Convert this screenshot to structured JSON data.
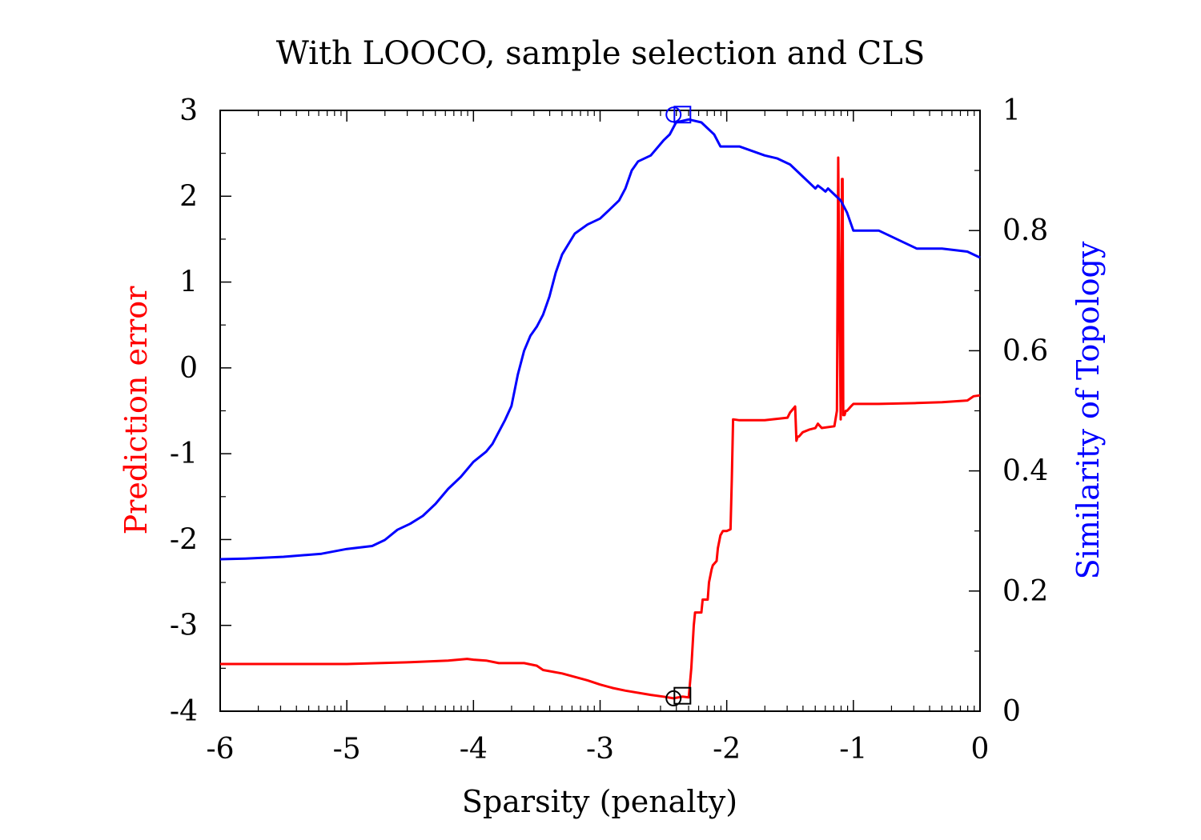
{
  "chart_data": {
    "type": "line",
    "title": "With LOOCO, sample selection and CLS",
    "xlabel": "Sparsity (penalty)",
    "ylabel_left": "Prediction error",
    "ylabel_right": "Similarity of Topology",
    "xlim": [
      -6,
      0
    ],
    "ylim_left": [
      -4,
      3
    ],
    "ylim_right": [
      0,
      1
    ],
    "x_ticks": [
      -6,
      -5,
      -4,
      -3,
      -2,
      -1,
      0
    ],
    "x_tick_labels": [
      "-6",
      "-5",
      "-4",
      "-3",
      "-2",
      "-1",
      "0"
    ],
    "y_left_ticks": [
      -4,
      -3,
      -2,
      -1,
      0,
      1,
      2,
      3
    ],
    "y_left_tick_labels": [
      "-4",
      "-3",
      "-2",
      "-1",
      "0",
      "1",
      "2",
      "3"
    ],
    "y_right_ticks": [
      0,
      0.2,
      0.4,
      0.6,
      0.8,
      1
    ],
    "y_right_tick_labels": [
      "0",
      "0.2",
      "0.4",
      "0.6",
      "0.8",
      "1"
    ],
    "grid": false,
    "legend": "none",
    "colors": {
      "prediction_error": "#ff0000",
      "similarity": "#0000ff",
      "markers": "#000000",
      "axes": "#000000"
    },
    "series": [
      {
        "axis": "left",
        "x": [
          -6.0,
          -5.5,
          -5.0,
          -4.5,
          -4.2,
          -4.05,
          -4.0,
          -3.9,
          -3.8,
          -3.6,
          -3.5,
          -3.45,
          -3.3,
          -3.1,
          -3.0,
          -2.9,
          -2.8,
          -2.6,
          -2.5,
          -2.42,
          -2.35,
          -2.3,
          -2.28,
          -2.26,
          -2.25,
          -2.2,
          -2.19,
          -2.15,
          -2.14,
          -2.12,
          -2.11,
          -2.08,
          -2.07,
          -2.05,
          -2.03,
          -2.0,
          -1.97,
          -1.96,
          -1.95,
          -1.9,
          -1.7,
          -1.52,
          -1.5,
          -1.46,
          -1.45,
          -1.44,
          -1.43,
          -1.4,
          -1.35,
          -1.3,
          -1.28,
          -1.25,
          -1.15,
          -1.13,
          -1.12,
          -1.11,
          -1.1,
          -1.09,
          -1.085,
          -1.08,
          -1.07,
          -1.06,
          -1.05,
          -1.02,
          -1.0,
          -0.95,
          -0.8,
          -0.5,
          -0.3,
          -0.1,
          -0.05,
          0.0
        ],
        "values": [
          -3.45,
          -3.45,
          -3.45,
          -3.43,
          -3.41,
          -3.39,
          -3.4,
          -3.41,
          -3.44,
          -3.44,
          -3.47,
          -3.52,
          -3.56,
          -3.64,
          -3.69,
          -3.73,
          -3.76,
          -3.81,
          -3.83,
          -3.85,
          -3.83,
          -3.84,
          -3.5,
          -3.0,
          -2.85,
          -2.85,
          -2.7,
          -2.7,
          -2.5,
          -2.35,
          -2.3,
          -2.25,
          -2.1,
          -1.95,
          -1.9,
          -1.9,
          -1.88,
          -1.3,
          -0.6,
          -0.61,
          -0.61,
          -0.58,
          -0.52,
          -0.45,
          -0.85,
          -0.8,
          -0.8,
          -0.75,
          -0.72,
          -0.7,
          -0.65,
          -0.7,
          -0.68,
          -0.5,
          2.45,
          0.8,
          -0.6,
          2.2,
          2.2,
          -0.55,
          -0.55,
          -0.5,
          -0.5,
          -0.45,
          -0.42,
          -0.42,
          -0.42,
          -0.41,
          -0.4,
          -0.38,
          -0.33,
          -0.32
        ]
      },
      {
        "axis": "right",
        "x": [
          -6.0,
          -5.8,
          -5.5,
          -5.2,
          -5.0,
          -4.8,
          -4.7,
          -4.6,
          -4.5,
          -4.4,
          -4.3,
          -4.2,
          -4.1,
          -4.0,
          -3.9,
          -3.85,
          -3.8,
          -3.75,
          -3.7,
          -3.65,
          -3.6,
          -3.55,
          -3.5,
          -3.45,
          -3.4,
          -3.35,
          -3.3,
          -3.2,
          -3.1,
          -3.0,
          -2.9,
          -2.85,
          -2.8,
          -2.75,
          -2.7,
          -2.6,
          -2.5,
          -2.45,
          -2.4,
          -2.3,
          -2.2,
          -2.15,
          -2.1,
          -2.05,
          -1.9,
          -1.7,
          -1.6,
          -1.5,
          -1.45,
          -1.35,
          -1.3,
          -1.28,
          -1.25,
          -1.22,
          -1.2,
          -1.15,
          -1.1,
          -1.05,
          -1.0,
          -0.9,
          -0.8,
          -0.7,
          -0.6,
          -0.5,
          -0.3,
          -0.1,
          0.0
        ],
        "values": [
          0.253,
          0.254,
          0.257,
          0.262,
          0.27,
          0.275,
          0.285,
          0.302,
          0.312,
          0.325,
          0.345,
          0.37,
          0.39,
          0.415,
          0.432,
          0.445,
          0.465,
          0.485,
          0.508,
          0.56,
          0.6,
          0.625,
          0.64,
          0.66,
          0.69,
          0.73,
          0.76,
          0.795,
          0.81,
          0.82,
          0.84,
          0.85,
          0.87,
          0.9,
          0.915,
          0.925,
          0.95,
          0.96,
          0.98,
          0.985,
          0.98,
          0.97,
          0.96,
          0.94,
          0.94,
          0.925,
          0.92,
          0.91,
          0.9,
          0.88,
          0.87,
          0.875,
          0.87,
          0.865,
          0.87,
          0.86,
          0.85,
          0.83,
          0.8,
          0.8,
          0.8,
          0.79,
          0.78,
          0.77,
          0.77,
          0.765,
          0.755
        ]
      }
    ],
    "markers": [
      {
        "shape": "circle",
        "axis": "left",
        "x": -2.42,
        "y": -3.85,
        "color": "#000000"
      },
      {
        "shape": "square",
        "axis": "left",
        "x": -2.35,
        "y": -3.82,
        "color": "#000000"
      },
      {
        "shape": "circle",
        "axis": "right",
        "x": -2.42,
        "y": 0.993,
        "color": "#0000ff"
      },
      {
        "shape": "square",
        "axis": "right",
        "x": -2.35,
        "y": 0.993,
        "color": "#0000ff"
      }
    ]
  }
}
